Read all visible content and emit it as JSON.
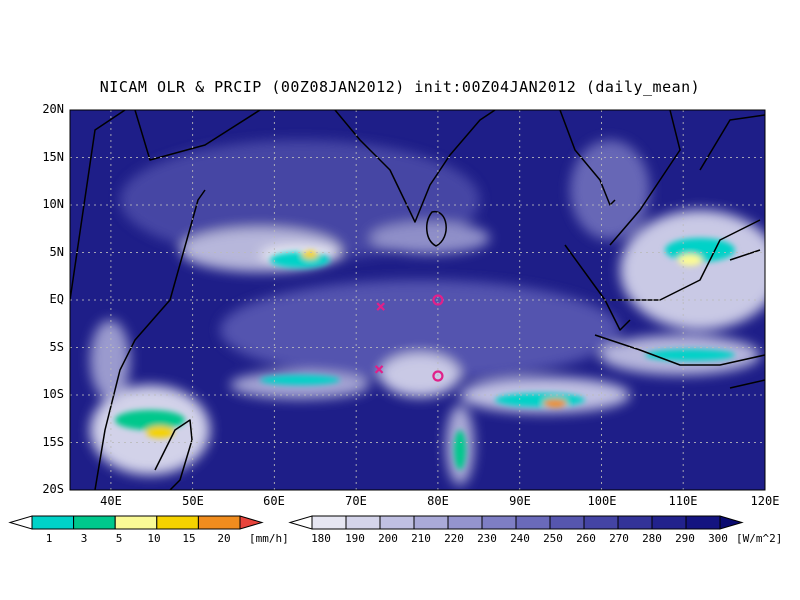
{
  "title": "NICAM OLR & PRCIP (00Z08JAN2012) init:00Z04JAN2012 (daily_mean)",
  "map": {
    "lon_range": [
      35,
      120
    ],
    "lat_range": [
      -20,
      20
    ],
    "lat_labels": [
      "20N",
      "15N",
      "10N",
      "5N",
      "EQ",
      "5S",
      "10S",
      "15S",
      "20S"
    ],
    "lon_labels": [
      "40E",
      "50E",
      "60E",
      "70E",
      "80E",
      "90E",
      "100E",
      "110E",
      "120E"
    ],
    "gridlines": true,
    "markers": [
      {
        "symbol": "x",
        "lon": 73.0,
        "lat": -0.7,
        "color": "#e0208a"
      },
      {
        "symbol": "o",
        "lon": 80.0,
        "lat": 0.0,
        "color": "#e0208a"
      },
      {
        "symbol": "x",
        "lon": 72.8,
        "lat": -7.3,
        "color": "#e0208a"
      },
      {
        "symbol": "o",
        "lon": 80.0,
        "lat": -8.0,
        "color": "#e0208a"
      }
    ]
  },
  "precip_colorbar": {
    "unit": "[mm/h]",
    "labels": [
      "1",
      "3",
      "5",
      "10",
      "15",
      "20"
    ],
    "colors": [
      "#ffffff",
      "#00d2c8",
      "#00c88c",
      "#fafa96",
      "#f5d200",
      "#f08c1e",
      "#e8443c"
    ]
  },
  "olr_colorbar": {
    "unit": "[W/m^2]",
    "labels": [
      "180",
      "190",
      "200",
      "210",
      "220",
      "230",
      "240",
      "250",
      "260",
      "270",
      "280",
      "290",
      "300"
    ],
    "colors": [
      "#ffffff",
      "#e6e6f2",
      "#d4d4ea",
      "#c0c0e2",
      "#aaaad8",
      "#9494ce",
      "#7e7ec4",
      "#6a6aba",
      "#5656ae",
      "#4444a4",
      "#333398",
      "#22228c",
      "#141480",
      "#0a0a70"
    ]
  }
}
